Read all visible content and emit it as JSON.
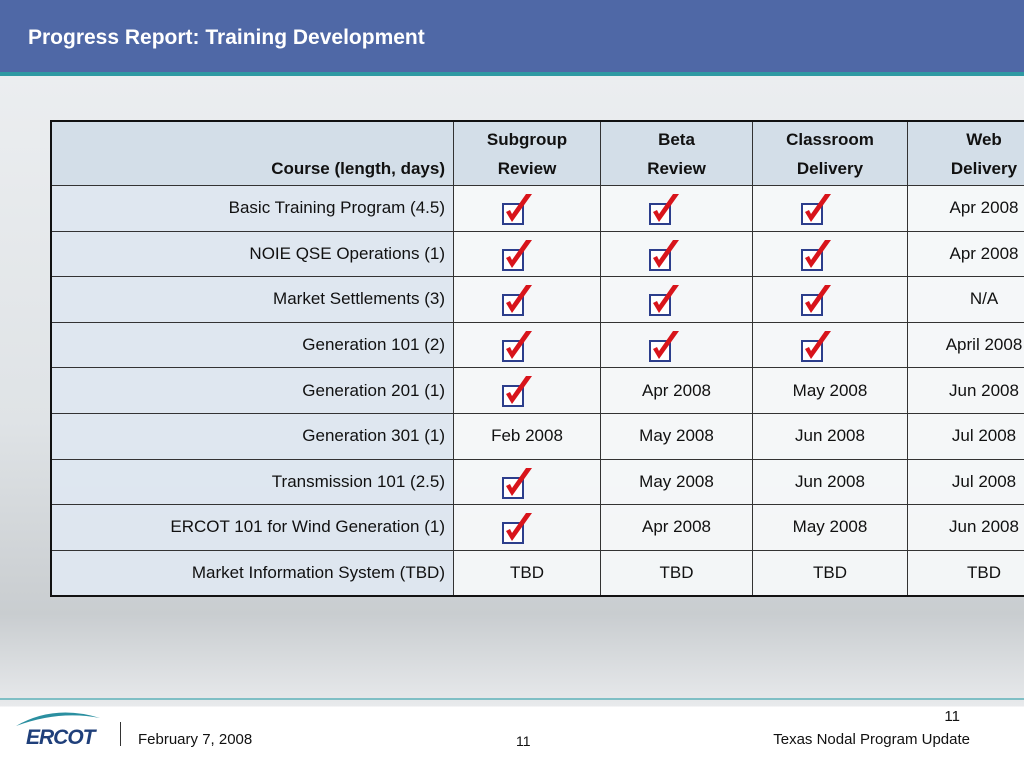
{
  "header": {
    "title": "Progress Report: Training Development"
  },
  "table": {
    "columns": [
      [
        "Course (length, days)"
      ],
      [
        "Subgroup",
        "Review"
      ],
      [
        "Beta",
        "Review"
      ],
      [
        "Classroom",
        "Delivery"
      ],
      [
        "Web",
        "Delivery"
      ]
    ],
    "rows": [
      [
        "Basic Training Program (4.5)",
        null,
        null,
        null,
        "Apr 2008"
      ],
      [
        "NOIE QSE Operations (1)",
        null,
        null,
        null,
        "Apr 2008"
      ],
      [
        "Market Settlements (3)",
        null,
        null,
        null,
        "N/A"
      ],
      [
        "Generation 101 (2)",
        null,
        null,
        null,
        "April 2008"
      ],
      [
        "Generation 201 (1)",
        null,
        "Apr 2008",
        "May 2008",
        "Jun 2008"
      ],
      [
        "Generation 301 (1)",
        "Feb 2008",
        "May 2008",
        "Jun 2008",
        "Jul 2008"
      ],
      [
        "Transmission 101 (2.5)",
        null,
        "May 2008",
        "Jun 2008",
        "Jul 2008"
      ],
      [
        "ERCOT 101 for Wind Generation (1)",
        null,
        "Apr 2008",
        "May 2008",
        "Jun 2008"
      ],
      [
        "Market Information System (TBD)",
        "TBD",
        "TBD",
        "TBD",
        "TBD"
      ]
    ]
  },
  "footer": {
    "logo": "ERCOT",
    "date": "February 7, 2008",
    "page": "11",
    "program": "Texas Nodal Program Update",
    "slide_number": "11"
  }
}
